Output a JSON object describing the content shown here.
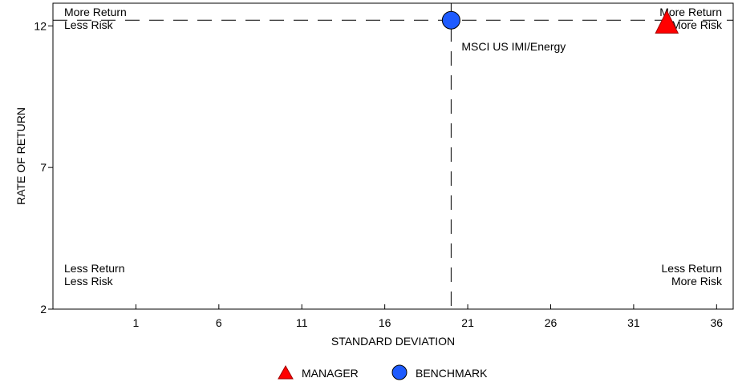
{
  "chart_data": {
    "type": "scatter",
    "xlabel": "STANDARD DEVIATION",
    "ylabel": "RATE OF RETURN",
    "xlim": [
      -4,
      37
    ],
    "ylim": [
      2,
      12.8
    ],
    "x_ticks": [
      1,
      6,
      11,
      16,
      21,
      26,
      31,
      36
    ],
    "y_ticks": [
      2,
      7,
      12
    ],
    "quadrant_labels": {
      "top_left": [
        "More Return",
        "Less Risk"
      ],
      "top_right": [
        "More Return",
        "More Risk"
      ],
      "bottom_left": [
        "Less Return",
        "Less Risk"
      ],
      "bottom_right": [
        "Less Return",
        "More Risk"
      ]
    },
    "benchmark_annotation": "MSCI US IMI/Energy",
    "series": [
      {
        "name": "MANAGER",
        "marker": "triangle",
        "color": "#ff0000",
        "x": 33.0,
        "y": 12.1
      },
      {
        "name": "BENCHMARK",
        "marker": "circle",
        "color": "#1e5bff",
        "x": 20.0,
        "y": 12.2
      }
    ],
    "reference_lines": {
      "x": 20.0,
      "y": 12.2
    },
    "grid": false,
    "legend_position": "bottom-center"
  }
}
